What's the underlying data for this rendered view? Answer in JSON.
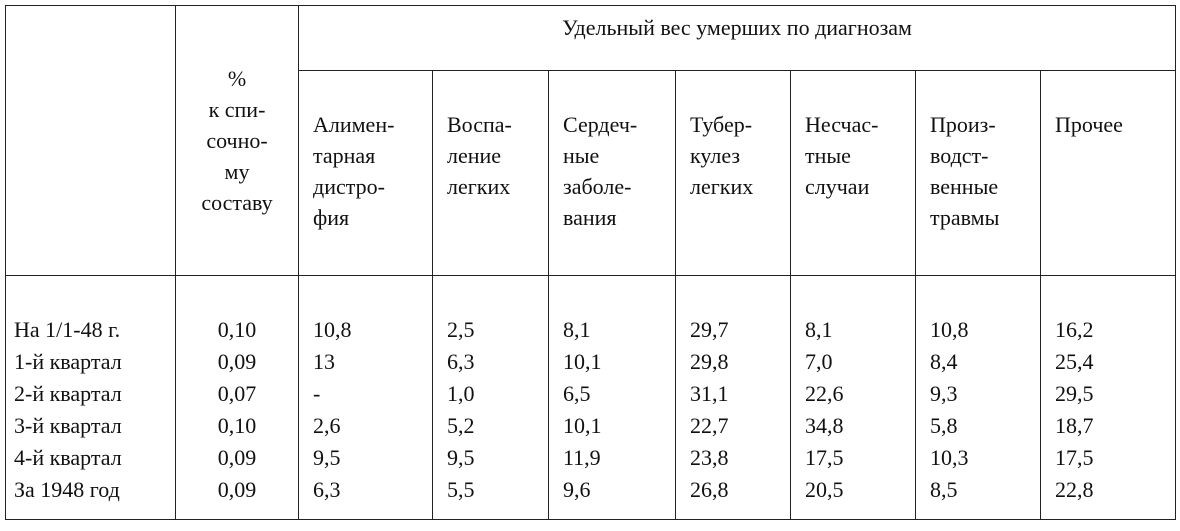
{
  "table": {
    "group_header": "Удельный вес умерших по диагнозам",
    "percent_header": "%\nк спи-\nсочно-\nму\nсоставу",
    "columns": [
      "Алимен-\nтарная\nдистро-\nфия",
      "Воспа-\nление\nлегких",
      "Сердеч-\nные\nзаболе-\nвания",
      "Тубер-\nкулез\nлегких",
      "Несчас-\nтные\nслучаи",
      "Произ-\nводст-\nвенные\nтравмы",
      "Прочее"
    ],
    "rows": [
      {
        "label": "На 1/1-48 г.",
        "percent": "0,10",
        "values": [
          "10,8",
          "2,5",
          "8,1",
          "29,7",
          "8,1",
          "10,8",
          "16,2"
        ]
      },
      {
        "label": "1-й квартал",
        "percent": "0,09",
        "values": [
          "13",
          "6,3",
          "10,1",
          "29,8",
          "7,0",
          "8,4",
          "25,4"
        ]
      },
      {
        "label": "2-й квартал",
        "percent": "0,07",
        "values": [
          "-",
          "1,0",
          "6,5",
          "31,1",
          "22,6",
          "9,3",
          "29,5"
        ]
      },
      {
        "label": "3-й квартал",
        "percent": "0,10",
        "values": [
          "2,6",
          "5,2",
          "10,1",
          "22,7",
          "34,8",
          "5,8",
          "18,7"
        ]
      },
      {
        "label": "4-й квартал",
        "percent": "0,09",
        "values": [
          "9,5",
          "9,5",
          "11,9",
          "23,8",
          "17,5",
          "10,3",
          "17,5"
        ]
      },
      {
        "label": "За 1948 год",
        "percent": "0,09",
        "values": [
          "6,3",
          "5,5",
          "9,6",
          "26,8",
          "20,5",
          "8,5",
          "22,8"
        ]
      }
    ]
  }
}
